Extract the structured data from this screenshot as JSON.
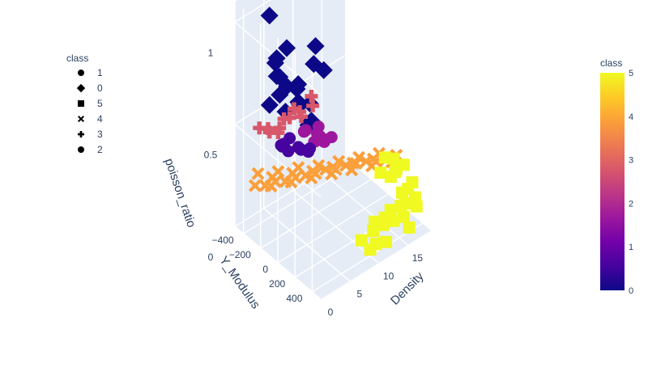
{
  "chart_data": {
    "type": "scatter3d",
    "title": "",
    "axes": {
      "x": {
        "label": "Density",
        "range": [
          0,
          19
        ],
        "ticks": [
          "0",
          "5",
          "10",
          "15"
        ]
      },
      "y": {
        "label": "Y_Modulus",
        "range": [
          -500,
          500
        ],
        "ticks": [
          "−400",
          "−200",
          "0",
          "200",
          "400"
        ]
      },
      "z": {
        "label": "poisson_ratio",
        "range": [
          0,
          1.1
        ],
        "ticks": [
          "0",
          "0.5",
          "1"
        ]
      }
    },
    "grid": true,
    "legend": {
      "title": "class",
      "placement": "top-left",
      "entries": [
        {
          "label": "1",
          "symbol": "circle"
        },
        {
          "label": "0",
          "symbol": "diamond"
        },
        {
          "label": "5",
          "symbol": "square"
        },
        {
          "label": "4",
          "symbol": "x"
        },
        {
          "label": "3",
          "symbol": "cross"
        },
        {
          "label": "2",
          "symbol": "circle"
        }
      ]
    },
    "colorbar": {
      "title": "class",
      "range": [
        0,
        5
      ],
      "ticks": [
        "0",
        "1",
        "2",
        "3",
        "4",
        "5"
      ],
      "colors": [
        "#0d0887",
        "#46039f",
        "#7201a8",
        "#9c179e",
        "#bd3786",
        "#d8576b",
        "#ed7953",
        "#fb9f3a",
        "#fdca26",
        "#f0f921"
      ]
    },
    "series": [
      {
        "name": "0",
        "symbol": "diamond",
        "color": "#0d0887",
        "points": [
          [
            3.0,
            -300,
            1.05
          ],
          [
            1.0,
            350,
            1.08
          ],
          [
            2.0,
            400,
            1.05
          ],
          [
            2.8,
            250,
            1.1
          ],
          [
            3.5,
            -250,
            0.85
          ],
          [
            4.0,
            -300,
            0.8
          ],
          [
            4.0,
            -250,
            0.75
          ],
          [
            5.0,
            -100,
            0.75
          ],
          [
            5.0,
            -350,
            0.7
          ],
          [
            6.0,
            -300,
            0.65
          ],
          [
            5.5,
            -150,
            0.7
          ],
          [
            6.5,
            -200,
            0.6
          ],
          [
            7.0,
            -100,
            0.62
          ],
          [
            4.5,
            -200,
            0.9
          ],
          [
            6.0,
            -50,
            0.55
          ],
          [
            7.5,
            -250,
            0.55
          ],
          [
            5.5,
            -350,
            0.6
          ],
          [
            8.0,
            -150,
            0.5
          ],
          [
            4.5,
            -400,
            0.55
          ],
          [
            6.5,
            -350,
            0.5
          ]
        ]
      },
      {
        "name": "1",
        "symbol": "circle",
        "color": "#9c179e",
        "points": [
          [
            6.0,
            -100,
            0.5
          ],
          [
            7.0,
            -50,
            0.45
          ],
          [
            8.0,
            0,
            0.45
          ],
          [
            8.5,
            -100,
            0.48
          ],
          [
            9.0,
            -150,
            0.42
          ],
          [
            7.5,
            -200,
            0.44
          ],
          [
            8.0,
            -50,
            0.46
          ],
          [
            9.5,
            -100,
            0.4
          ],
          [
            6.5,
            0,
            0.48
          ],
          [
            7.0,
            -150,
            0.47
          ],
          [
            10.0,
            -50,
            0.42
          ],
          [
            8.5,
            -250,
            0.41
          ]
        ]
      },
      {
        "name": "2",
        "symbol": "circle",
        "color": "#46039f",
        "points": [
          [
            5.0,
            -200,
            0.45
          ],
          [
            5.5,
            -100,
            0.42
          ],
          [
            6.0,
            -150,
            0.4
          ],
          [
            4.5,
            -250,
            0.4
          ],
          [
            6.5,
            -200,
            0.38
          ],
          [
            5.0,
            -300,
            0.38
          ],
          [
            7.0,
            -100,
            0.4
          ],
          [
            6.0,
            -50,
            0.42
          ],
          [
            4.0,
            -200,
            0.44
          ],
          [
            5.5,
            -250,
            0.36
          ]
        ]
      },
      {
        "name": "3",
        "symbol": "cross",
        "color": "#d8576b",
        "points": [
          [
            2.0,
            -350,
            0.5
          ],
          [
            3.0,
            -300,
            0.48
          ],
          [
            4.0,
            -250,
            0.5
          ],
          [
            3.5,
            -350,
            0.47
          ],
          [
            5.0,
            -200,
            0.55
          ],
          [
            6.0,
            -150,
            0.58
          ],
          [
            7.0,
            -200,
            0.52
          ],
          [
            6.5,
            -250,
            0.55
          ],
          [
            8.0,
            -150,
            0.62
          ],
          [
            4.5,
            -300,
            0.45
          ],
          [
            5.5,
            -300,
            0.5
          ],
          [
            7.5,
            -100,
            0.6
          ]
        ]
      },
      {
        "name": "4",
        "symbol": "x",
        "color": "#fb9f3a",
        "points": [
          [
            2.0,
            -400,
            0.2
          ],
          [
            3.0,
            -350,
            0.2
          ],
          [
            4.0,
            -300,
            0.22
          ],
          [
            5.0,
            -250,
            0.22
          ],
          [
            6.0,
            -200,
            0.24
          ],
          [
            7.0,
            -150,
            0.25
          ],
          [
            8.0,
            -100,
            0.26
          ],
          [
            9.0,
            -50,
            0.28
          ],
          [
            10.0,
            0,
            0.28
          ],
          [
            11.0,
            50,
            0.3
          ],
          [
            12.0,
            100,
            0.31
          ],
          [
            13.0,
            150,
            0.32
          ],
          [
            14.0,
            200,
            0.32
          ],
          [
            15.0,
            250,
            0.33
          ],
          [
            3.5,
            -300,
            0.25
          ],
          [
            5.5,
            -200,
            0.27
          ],
          [
            7.5,
            -100,
            0.28
          ],
          [
            9.5,
            0,
            0.3
          ],
          [
            11.5,
            100,
            0.32
          ],
          [
            13.5,
            200,
            0.34
          ],
          [
            2.5,
            -400,
            0.25
          ],
          [
            4.5,
            -300,
            0.26
          ],
          [
            6.5,
            -200,
            0.28
          ],
          [
            8.5,
            -100,
            0.29
          ],
          [
            10.5,
            0,
            0.31
          ],
          [
            12.5,
            100,
            0.33
          ],
          [
            14.5,
            200,
            0.35
          ],
          [
            16.0,
            300,
            0.35
          ],
          [
            4.0,
            -350,
            0.18
          ],
          [
            6.0,
            -250,
            0.2
          ],
          [
            8.0,
            -150,
            0.22
          ],
          [
            10.0,
            -50,
            0.24
          ],
          [
            12.0,
            50,
            0.26
          ],
          [
            14.0,
            150,
            0.28
          ],
          [
            16.0,
            250,
            0.3
          ]
        ]
      },
      {
        "name": "5",
        "symbol": "square",
        "color": "#f0f921",
        "points": [
          [
            14.0,
            400,
            0.1
          ],
          [
            15.0,
            450,
            0.12
          ],
          [
            16.0,
            400,
            0.15
          ],
          [
            17.0,
            450,
            0.18
          ],
          [
            18.0,
            350,
            0.2
          ],
          [
            15.0,
            300,
            0.1
          ],
          [
            16.0,
            350,
            0.12
          ],
          [
            17.0,
            300,
            0.15
          ],
          [
            18.0,
            400,
            0.1
          ],
          [
            13.0,
            350,
            0.08
          ],
          [
            12.0,
            450,
            0.05
          ],
          [
            17.5,
            200,
            0.22
          ],
          [
            18.0,
            250,
            0.25
          ],
          [
            16.5,
            200,
            0.2
          ],
          [
            15.5,
            150,
            0.22
          ],
          [
            17.0,
            100,
            0.25
          ],
          [
            12.0,
            300,
            0.05
          ],
          [
            11.0,
            400,
            0.04
          ],
          [
            13.0,
            250,
            0.06
          ],
          [
            14.0,
            300,
            0.08
          ],
          [
            10.0,
            400,
            0.03
          ],
          [
            10.0,
            300,
            0.04
          ],
          [
            16.0,
            450,
            0.05
          ],
          [
            18.0,
            150,
            0.18
          ],
          [
            17.0,
            200,
            0.28
          ],
          [
            18.0,
            300,
            0.15
          ]
        ]
      }
    ]
  }
}
